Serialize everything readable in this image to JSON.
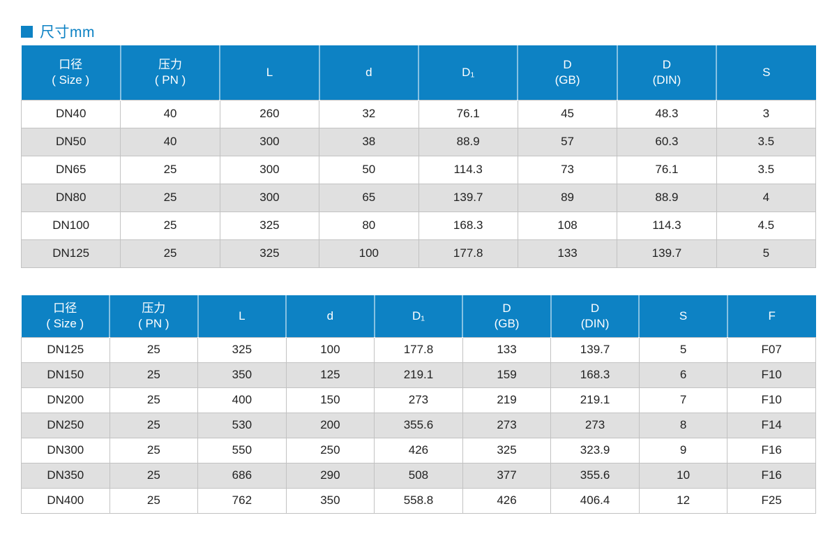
{
  "page": {
    "title": "尺寸mm"
  },
  "colors": {
    "accent": "#0d82c4",
    "row_alt": "#e0e0e0"
  },
  "table1": {
    "columns": [
      "口径\n( Size )",
      "压力\n( PN )",
      "L",
      "d",
      "D₁",
      "D\n(GB)",
      "D\n(DIN)",
      "S"
    ],
    "rows": [
      [
        "DN40",
        "40",
        "260",
        "32",
        "76.1",
        "45",
        "48.3",
        "3"
      ],
      [
        "DN50",
        "40",
        "300",
        "38",
        "88.9",
        "57",
        "60.3",
        "3.5"
      ],
      [
        "DN65",
        "25",
        "300",
        "50",
        "114.3",
        "73",
        "76.1",
        "3.5"
      ],
      [
        "DN80",
        "25",
        "300",
        "65",
        "139.7",
        "89",
        "88.9",
        "4"
      ],
      [
        "DN100",
        "25",
        "325",
        "80",
        "168.3",
        "108",
        "114.3",
        "4.5"
      ],
      [
        "DN125",
        "25",
        "325",
        "100",
        "177.8",
        "133",
        "139.7",
        "5"
      ]
    ]
  },
  "table2": {
    "columns": [
      "口径\n( Size )",
      "压力\n( PN )",
      "L",
      "d",
      "D₁",
      "D\n(GB)",
      "D\n(DIN)",
      "S",
      "F"
    ],
    "rows": [
      [
        "DN125",
        "25",
        "325",
        "100",
        "177.8",
        "133",
        "139.7",
        "5",
        "F07"
      ],
      [
        "DN150",
        "25",
        "350",
        "125",
        "219.1",
        "159",
        "168.3",
        "6",
        "F10"
      ],
      [
        "DN200",
        "25",
        "400",
        "150",
        "273",
        "219",
        "219.1",
        "7",
        "F10"
      ],
      [
        "DN250",
        "25",
        "530",
        "200",
        "355.6",
        "273",
        "273",
        "8",
        "F14"
      ],
      [
        "DN300",
        "25",
        "550",
        "250",
        "426",
        "325",
        "323.9",
        "9",
        "F16"
      ],
      [
        "DN350",
        "25",
        "686",
        "290",
        "508",
        "377",
        "355.6",
        "10",
        "F16"
      ],
      [
        "DN400",
        "25",
        "762",
        "350",
        "558.8",
        "426",
        "406.4",
        "12",
        "F25"
      ]
    ]
  }
}
